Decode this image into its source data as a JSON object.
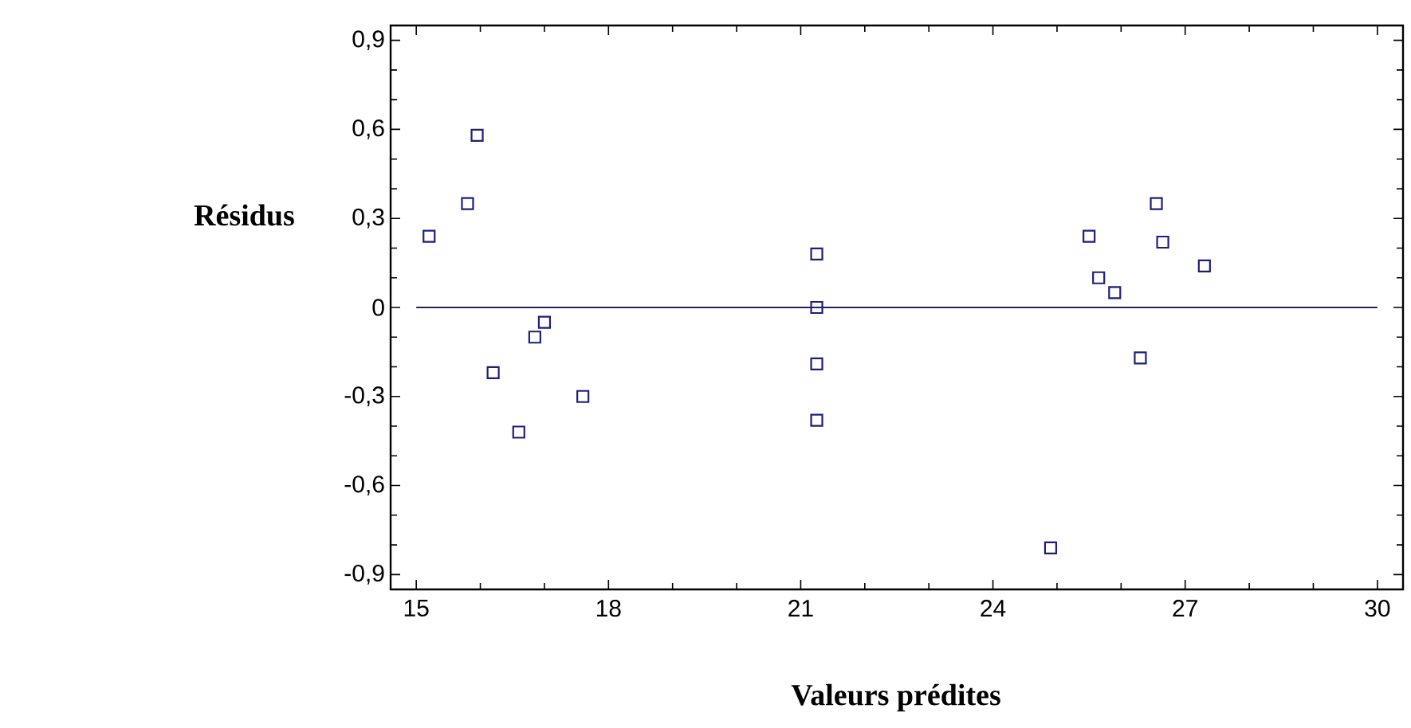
{
  "chart_data": {
    "type": "scatter",
    "xlabel": "Valeurs prédites",
    "ylabel": "Résidus",
    "x": [
      15.2,
      15.8,
      15.95,
      16.2,
      16.6,
      16.85,
      17.0,
      17.6,
      21.25,
      21.25,
      21.25,
      21.25,
      24.9,
      25.5,
      25.65,
      25.9,
      26.3,
      26.55,
      26.65,
      27.3
    ],
    "values": [
      0.24,
      0.35,
      0.58,
      -0.22,
      -0.42,
      -0.1,
      -0.05,
      -0.3,
      0.18,
      0.0,
      -0.19,
      -0.38,
      -0.81,
      0.24,
      0.1,
      0.05,
      -0.17,
      0.35,
      0.22,
      0.14
    ],
    "color": "#1f1f7a",
    "marker": "square",
    "xlim": [
      14.6,
      30.4
    ],
    "ylim": [
      -0.95,
      0.95
    ],
    "xticks": [
      15,
      18,
      21,
      24,
      27,
      30
    ],
    "yticks": [
      {
        "value": 0.9,
        "label": "0,9"
      },
      {
        "value": 0.6,
        "label": "0,6"
      },
      {
        "value": 0.3,
        "label": "0,3"
      },
      0,
      {
        "value": -0.3,
        "label": "-0,3"
      },
      {
        "value": -0.6,
        "label": "-0,6"
      },
      {
        "value": -0.9,
        "label": "-0,9"
      }
    ],
    "ref_lines": [
      {
        "axis": "y",
        "value": 0,
        "color": "#1f1f7a"
      }
    ]
  }
}
